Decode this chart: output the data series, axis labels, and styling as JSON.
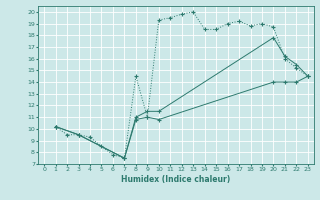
{
  "xlabel": "Humidex (Indice chaleur)",
  "bg_color": "#cce8e8",
  "line_color": "#2d7a6e",
  "grid_color": "#ffffff",
  "xlim": [
    -0.5,
    23.5
  ],
  "ylim": [
    7,
    20.5
  ],
  "xticks": [
    0,
    1,
    2,
    3,
    4,
    5,
    6,
    7,
    8,
    9,
    10,
    11,
    12,
    13,
    14,
    15,
    16,
    17,
    18,
    19,
    20,
    21,
    22,
    23
  ],
  "yticks": [
    7,
    8,
    9,
    10,
    11,
    12,
    13,
    14,
    15,
    16,
    17,
    18,
    19,
    20
  ],
  "line1_x": [
    1,
    2,
    3,
    4,
    5,
    6,
    7,
    8,
    9,
    10,
    11,
    12,
    13,
    14,
    15,
    16,
    17,
    18,
    19,
    20,
    21,
    22,
    23
  ],
  "line1_y": [
    10.2,
    9.5,
    9.5,
    9.3,
    8.5,
    7.8,
    7.5,
    14.5,
    11,
    19.3,
    19.5,
    19.8,
    20,
    18.5,
    18.5,
    19,
    19.2,
    18.8,
    19,
    18.7,
    16,
    15.2,
    14.5
  ],
  "line2_x": [
    1,
    3,
    7,
    8,
    9,
    10,
    20,
    21,
    22,
    23
  ],
  "line2_y": [
    10.2,
    9.5,
    7.5,
    11,
    11.5,
    11.5,
    17.8,
    16.2,
    15.5,
    14.5
  ],
  "line3_x": [
    1,
    3,
    7,
    8,
    9,
    10,
    20,
    21,
    22,
    23
  ],
  "line3_y": [
    10.2,
    9.5,
    7.5,
    10.8,
    11,
    10.8,
    14,
    14,
    14,
    14.5
  ]
}
